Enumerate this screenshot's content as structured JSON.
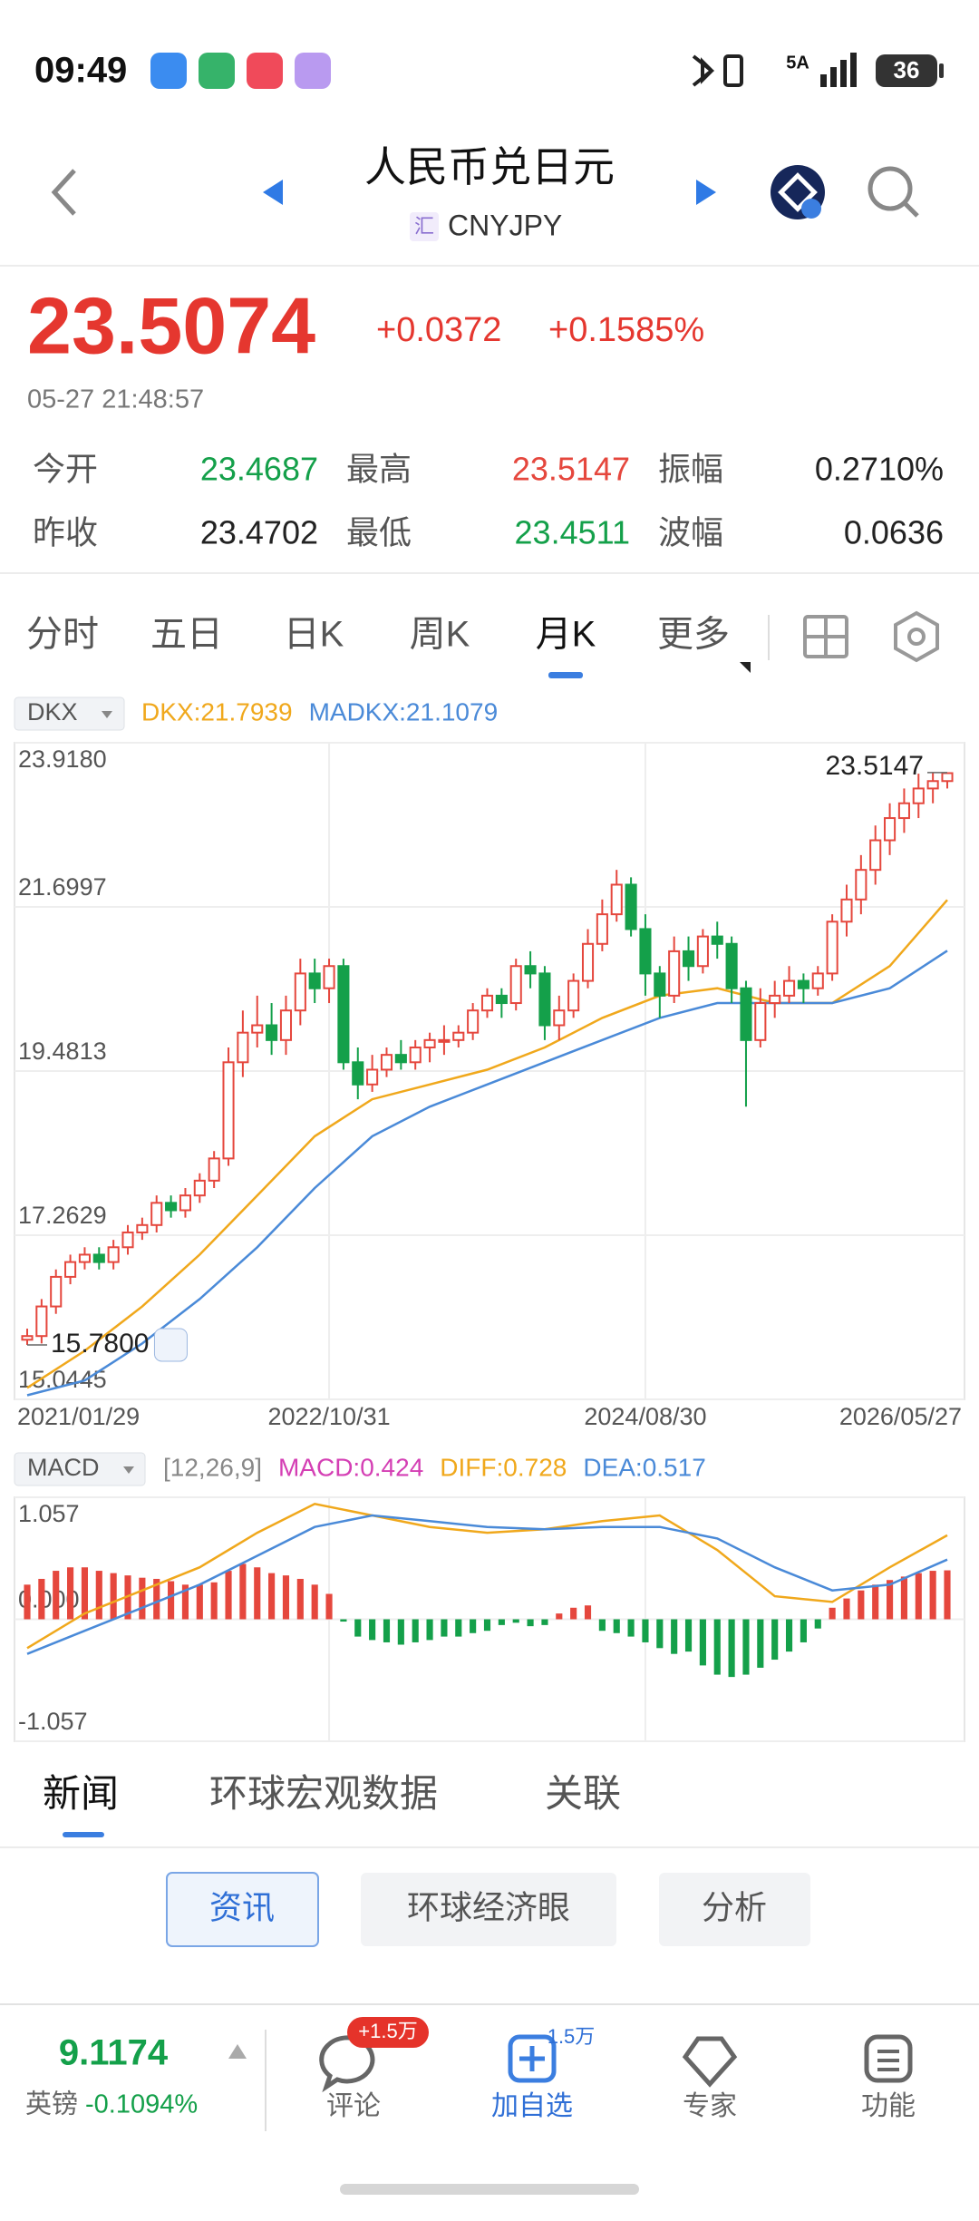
{
  "status_bar": {
    "time": "09:49",
    "network": "5A",
    "battery": "36"
  },
  "header": {
    "title": "人民币兑日元",
    "symbol_badge": "汇",
    "symbol": "CNYJPY"
  },
  "quote": {
    "price": "23.5074",
    "change": "+0.0372",
    "change_pct": "+0.1585%",
    "timestamp": "05-27 21:48:57",
    "stats": [
      {
        "label": "今开",
        "value": "23.4687",
        "color": "#14a04a"
      },
      {
        "label": "最高",
        "value": "23.5147",
        "color": "#e5473d"
      },
      {
        "label": "振幅",
        "value": "0.2710%",
        "color": "#222222"
      },
      {
        "label": "昨收",
        "value": "23.4702",
        "color": "#222222"
      },
      {
        "label": "最低",
        "value": "23.4511",
        "color": "#14a04a"
      },
      {
        "label": "波幅",
        "value": "0.0636",
        "color": "#222222"
      }
    ]
  },
  "period_tabs": [
    "分时",
    "五日",
    "日K",
    "周K",
    "月K",
    "更多"
  ],
  "chart_data": [
    {
      "type": "candlestick",
      "indicator": "DKX",
      "xlim": [
        0,
        64
      ],
      "xticks": [
        {
          "value": 0,
          "label": "2021/01/29"
        },
        {
          "value": 21,
          "label": "2022/10/31"
        },
        {
          "value": 43,
          "label": "2024/08/30"
        },
        {
          "value": 64,
          "label": "2026/05/27"
        }
      ],
      "ylim": [
        15.0445,
        23.918
      ],
      "yticks": [
        15.0445,
        17.2629,
        19.4813,
        21.6997,
        {
          "value": 23.918,
          "label": "23.9180"
        }
      ],
      "grid": true,
      "up_color": "#e5473d",
      "down_color": "#14a04a",
      "x": [
        0,
        1,
        2,
        3,
        4,
        5,
        6,
        7,
        8,
        9,
        10,
        11,
        12,
        13,
        14,
        15,
        16,
        17,
        18,
        19,
        20,
        21,
        22,
        23,
        24,
        25,
        26,
        27,
        28,
        29,
        30,
        31,
        32,
        33,
        34,
        35,
        36,
        37,
        38,
        39,
        40,
        41,
        42,
        43,
        44,
        45,
        46,
        47,
        48,
        49,
        50,
        51,
        52,
        53,
        54,
        55,
        56,
        57,
        58,
        59,
        60,
        61,
        62,
        63,
        64
      ],
      "open": [
        15.85,
        15.9,
        16.3,
        16.7,
        16.9,
        17.0,
        16.9,
        17.1,
        17.3,
        17.4,
        17.7,
        17.6,
        17.8,
        18.0,
        18.3,
        19.6,
        20.0,
        20.1,
        19.9,
        20.3,
        20.8,
        20.6,
        20.9,
        19.6,
        19.3,
        19.5,
        19.7,
        19.6,
        19.8,
        19.9,
        19.9,
        20.0,
        20.3,
        20.5,
        20.4,
        20.9,
        20.8,
        20.1,
        20.3,
        20.7,
        21.2,
        21.6,
        22.0,
        21.4,
        20.8,
        20.5,
        21.1,
        20.9,
        21.3,
        21.2,
        20.6,
        19.9,
        20.4,
        20.5,
        20.7,
        20.6,
        20.8,
        21.5,
        21.8,
        22.2,
        22.6,
        22.9,
        23.1,
        23.3,
        23.4
      ],
      "high": [
        16.0,
        16.4,
        16.8,
        17.0,
        17.1,
        17.1,
        17.2,
        17.4,
        17.5,
        17.8,
        17.8,
        17.9,
        18.1,
        18.4,
        19.8,
        20.3,
        20.5,
        20.4,
        20.5,
        21.0,
        21.0,
        21.0,
        21.0,
        19.8,
        19.7,
        19.8,
        19.9,
        19.9,
        20.0,
        20.1,
        20.1,
        20.4,
        20.6,
        20.6,
        21.0,
        21.1,
        20.9,
        20.5,
        20.8,
        21.4,
        21.8,
        22.2,
        22.1,
        21.6,
        20.9,
        21.3,
        21.3,
        21.4,
        21.5,
        21.3,
        20.7,
        20.6,
        20.7,
        20.9,
        20.8,
        20.9,
        21.6,
        22.0,
        22.4,
        22.8,
        23.1,
        23.3,
        23.5,
        23.5147,
        23.5147
      ],
      "low": [
        15.78,
        15.8,
        16.2,
        16.6,
        16.8,
        16.8,
        16.8,
        17.0,
        17.2,
        17.3,
        17.5,
        17.5,
        17.7,
        17.9,
        18.2,
        19.4,
        19.8,
        19.7,
        19.7,
        20.1,
        20.4,
        20.4,
        19.5,
        19.1,
        19.2,
        19.4,
        19.5,
        19.5,
        19.6,
        19.7,
        19.8,
        19.9,
        20.2,
        20.2,
        20.3,
        20.6,
        19.9,
        19.9,
        20.2,
        20.6,
        21.1,
        21.5,
        21.3,
        20.5,
        20.2,
        20.4,
        20.7,
        20.8,
        21.0,
        20.4,
        19.0,
        19.8,
        20.2,
        20.4,
        20.4,
        20.5,
        20.7,
        21.3,
        21.6,
        22.0,
        22.4,
        22.7,
        22.9,
        23.1,
        23.3
      ],
      "close": [
        15.9,
        16.3,
        16.7,
        16.9,
        17.0,
        16.9,
        17.1,
        17.3,
        17.4,
        17.7,
        17.6,
        17.8,
        18.0,
        18.3,
        19.6,
        20.0,
        20.1,
        19.9,
        20.3,
        20.8,
        20.6,
        20.9,
        19.6,
        19.3,
        19.5,
        19.7,
        19.6,
        19.8,
        19.9,
        19.9,
        20.0,
        20.3,
        20.5,
        20.4,
        20.9,
        20.8,
        20.1,
        20.3,
        20.7,
        21.2,
        21.6,
        22.0,
        21.4,
        20.8,
        20.5,
        21.1,
        20.9,
        21.3,
        21.2,
        20.6,
        19.9,
        20.4,
        20.5,
        20.7,
        20.6,
        20.8,
        21.5,
        21.8,
        22.2,
        22.6,
        22.9,
        23.1,
        23.3,
        23.4,
        23.5074
      ],
      "series": [
        {
          "name": "DKX:21.7939",
          "color": "#f0a81c",
          "x": [
            0,
            4,
            8,
            12,
            16,
            20,
            24,
            28,
            32,
            36,
            40,
            44,
            48,
            52,
            56,
            60,
            64
          ],
          "values": [
            15.2,
            15.7,
            16.3,
            17.0,
            17.8,
            18.6,
            19.1,
            19.3,
            19.5,
            19.8,
            20.2,
            20.5,
            20.6,
            20.4,
            20.4,
            20.9,
            21.7939
          ]
        },
        {
          "name": "MADKX:21.1079",
          "color": "#4a8ad8",
          "x": [
            0,
            4,
            8,
            12,
            16,
            20,
            24,
            28,
            32,
            36,
            40,
            44,
            48,
            52,
            56,
            60,
            64
          ],
          "values": [
            15.1,
            15.3,
            15.8,
            16.4,
            17.1,
            17.9,
            18.6,
            19.0,
            19.3,
            19.6,
            19.9,
            20.2,
            20.4,
            20.4,
            20.4,
            20.6,
            21.1079
          ]
        }
      ],
      "annotations": [
        {
          "x": 64,
          "value": 23.5147,
          "label": "23.5147"
        },
        {
          "x": 0,
          "value": 15.78,
          "label": "15.7800"
        }
      ]
    },
    {
      "type": "bar",
      "indicator": "MACD",
      "params": "[12,26,9]",
      "xlim": [
        0,
        64
      ],
      "ylim": [
        -1.057,
        1.057
      ],
      "yticks": [
        -1.057,
        {
          "value": 0,
          "label": "0.000"
        },
        1.057
      ],
      "grid": true,
      "bars": {
        "name": "MACD:0.424",
        "color": "#d43fb4",
        "up_color": "#e5473d",
        "down_color": "#14a04a",
        "x": [
          0,
          1,
          2,
          3,
          4,
          5,
          6,
          7,
          8,
          9,
          10,
          11,
          12,
          13,
          14,
          15,
          16,
          17,
          18,
          19,
          20,
          21,
          22,
          23,
          24,
          25,
          26,
          27,
          28,
          29,
          30,
          31,
          32,
          33,
          34,
          35,
          36,
          37,
          38,
          39,
          40,
          41,
          42,
          43,
          44,
          45,
          46,
          47,
          48,
          49,
          50,
          51,
          52,
          53,
          54,
          55,
          56,
          57,
          58,
          59,
          60,
          61,
          62,
          63,
          64
        ],
        "values": [
          0.3,
          0.35,
          0.42,
          0.45,
          0.45,
          0.42,
          0.4,
          0.38,
          0.36,
          0.35,
          0.33,
          0.3,
          0.3,
          0.32,
          0.42,
          0.48,
          0.45,
          0.4,
          0.38,
          0.35,
          0.3,
          0.22,
          -0.02,
          -0.15,
          -0.18,
          -0.2,
          -0.22,
          -0.2,
          -0.18,
          -0.15,
          -0.15,
          -0.12,
          -0.1,
          -0.05,
          -0.03,
          -0.06,
          -0.05,
          0.05,
          0.1,
          0.12,
          -0.1,
          -0.12,
          -0.15,
          -0.2,
          -0.25,
          -0.3,
          -0.28,
          -0.4,
          -0.48,
          -0.5,
          -0.48,
          -0.42,
          -0.35,
          -0.28,
          -0.2,
          -0.08,
          0.1,
          0.18,
          0.25,
          0.3,
          0.34,
          0.37,
          0.4,
          0.42,
          0.424
        ]
      },
      "series": [
        {
          "name": "DIFF:0.728",
          "color": "#f0a81c",
          "x": [
            0,
            4,
            8,
            12,
            16,
            20,
            24,
            28,
            32,
            36,
            40,
            44,
            48,
            52,
            56,
            60,
            64
          ],
          "values": [
            -0.25,
            0.05,
            0.25,
            0.45,
            0.75,
            1.0,
            0.9,
            0.8,
            0.75,
            0.78,
            0.85,
            0.9,
            0.6,
            0.2,
            0.15,
            0.45,
            0.728
          ]
        },
        {
          "name": "DEA:0.517",
          "color": "#4a8ad8",
          "x": [
            0,
            4,
            8,
            12,
            16,
            20,
            24,
            28,
            32,
            36,
            40,
            44,
            48,
            52,
            56,
            60,
            64
          ],
          "values": [
            -0.3,
            -0.1,
            0.1,
            0.3,
            0.55,
            0.8,
            0.9,
            0.85,
            0.8,
            0.78,
            0.8,
            0.8,
            0.7,
            0.45,
            0.25,
            0.3,
            0.517
          ]
        }
      ]
    }
  ],
  "news_tabs": [
    "新闻",
    "环球宏观数据",
    "关联"
  ],
  "news_buttons": [
    "资讯",
    "环球经济眼",
    "分析"
  ],
  "bottom_bar": {
    "ticker_price": "9.1174",
    "ticker_name": "英镑",
    "ticker_change": "-0.1094%",
    "actions": [
      {
        "label": "评论",
        "badge": "+1.5万"
      },
      {
        "label": "加自选",
        "badge": "1.5万"
      },
      {
        "label": "专家"
      },
      {
        "label": "功能"
      }
    ]
  }
}
